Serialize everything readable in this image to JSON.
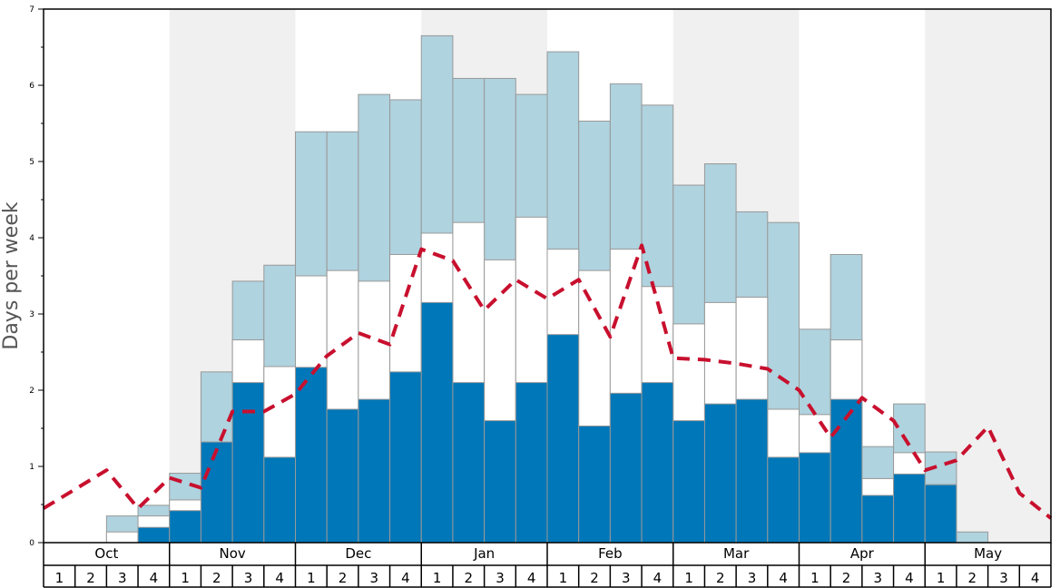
{
  "chart_data": {
    "type": "bar",
    "ylabel": "Days per week",
    "ylim": [
      0,
      7
    ],
    "yticks": [
      "0",
      "1",
      "2",
      "3",
      "4",
      "5",
      "6",
      "7"
    ],
    "months": [
      "Oct",
      "Nov",
      "Dec",
      "Jan",
      "Feb",
      "Mar",
      "Apr",
      "May"
    ],
    "week_labels": [
      "1",
      "2",
      "3",
      "4"
    ],
    "colors": {
      "dark": "#0077b8",
      "white": "#ffffff",
      "light": "#afd3df",
      "line": "#c8102e",
      "band": "#f0f0f0",
      "bar_edge": "#999999"
    },
    "series": [
      {
        "values": [
          0,
          0,
          0,
          0.2,
          0.42,
          1.32,
          2.1,
          1.12,
          2.3,
          1.75,
          1.88,
          2.24,
          3.15,
          2.1,
          1.6,
          2.1,
          2.73,
          1.53,
          1.96,
          2.1,
          1.6,
          1.82,
          1.88,
          1.12,
          1.18,
          1.88,
          0.62,
          0.9,
          0.76,
          0,
          0,
          0
        ]
      },
      {
        "values": [
          0,
          0,
          0.14,
          0.35,
          0.56,
          1.32,
          2.66,
          2.31,
          3.5,
          3.57,
          3.43,
          3.78,
          4.06,
          4.2,
          3.71,
          4.27,
          3.85,
          3.57,
          3.85,
          3.36,
          2.87,
          3.15,
          3.22,
          1.75,
          1.68,
          2.66,
          0.84,
          1.18,
          0.76,
          0,
          0,
          0
        ]
      },
      {
        "values": [
          0,
          0,
          0.35,
          0.49,
          0.91,
          2.24,
          3.43,
          3.64,
          5.39,
          5.39,
          5.88,
          5.81,
          6.65,
          6.09,
          6.09,
          5.88,
          6.44,
          5.53,
          6.02,
          5.74,
          4.69,
          4.97,
          4.34,
          4.2,
          2.8,
          3.78,
          1.26,
          1.82,
          1.19,
          0.14,
          0,
          0
        ]
      }
    ],
    "line": {
      "values": [
        0.45,
        0.7,
        0.95,
        0.45,
        0.85,
        0.72,
        1.72,
        1.72,
        1.95,
        2.45,
        2.75,
        2.6,
        3.85,
        3.7,
        3.05,
        3.45,
        3.2,
        3.45,
        2.7,
        3.9,
        2.42,
        2.4,
        2.35,
        2.28,
        2.0,
        1.38,
        1.9,
        1.6,
        0.95,
        1.08,
        1.52,
        0.65,
        0.32
      ]
    }
  }
}
